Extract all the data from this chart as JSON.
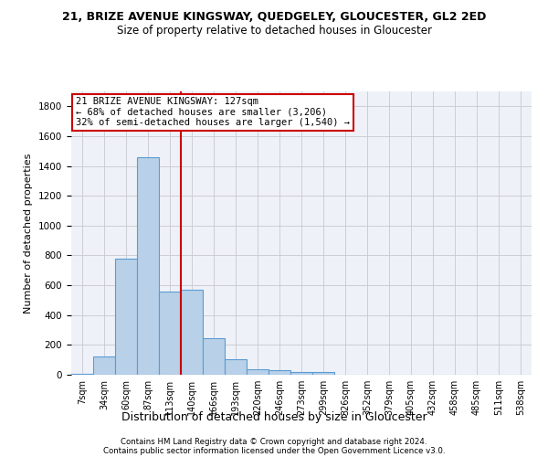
{
  "title": "21, BRIZE AVENUE KINGSWAY, QUEDGELEY, GLOUCESTER, GL2 2ED",
  "subtitle": "Size of property relative to detached houses in Gloucester",
  "xlabel": "Distribution of detached houses by size in Gloucester",
  "ylabel": "Number of detached properties",
  "bin_labels": [
    "7sqm",
    "34sqm",
    "60sqm",
    "87sqm",
    "113sqm",
    "140sqm",
    "166sqm",
    "193sqm",
    "220sqm",
    "246sqm",
    "273sqm",
    "299sqm",
    "326sqm",
    "352sqm",
    "379sqm",
    "405sqm",
    "432sqm",
    "458sqm",
    "485sqm",
    "511sqm",
    "538sqm"
  ],
  "bar_values": [
    8,
    120,
    780,
    1460,
    560,
    570,
    245,
    105,
    35,
    28,
    20,
    18,
    0,
    0,
    0,
    0,
    0,
    0,
    0,
    0,
    0
  ],
  "bar_color": "#b8d0e8",
  "bar_edge_color": "#5b9bd5",
  "vline_color": "#cc0000",
  "vline_x": 4.5,
  "annotation_text": "21 BRIZE AVENUE KINGSWAY: 127sqm\n← 68% of detached houses are smaller (3,206)\n32% of semi-detached houses are larger (1,540) →",
  "annotation_box_facecolor": "#ffffff",
  "annotation_box_edgecolor": "#cc0000",
  "ylim": [
    0,
    1900
  ],
  "yticks": [
    0,
    200,
    400,
    600,
    800,
    1000,
    1200,
    1400,
    1600,
    1800
  ],
  "grid_color": "#c8c8d0",
  "plot_bg_color": "#eef2f8",
  "footer_line1": "Contains HM Land Registry data © Crown copyright and database right 2024.",
  "footer_line2": "Contains public sector information licensed under the Open Government Licence v3.0."
}
